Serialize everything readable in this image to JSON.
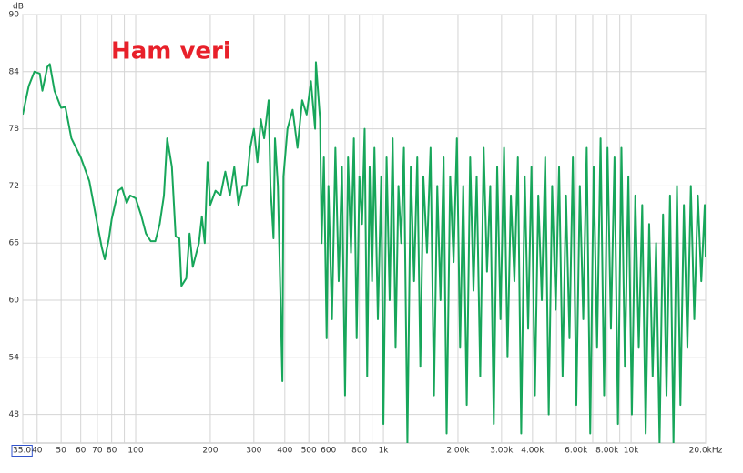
{
  "chart_data": {
    "type": "line",
    "title": "Ham veri",
    "y_label": "dB",
    "log_x": true,
    "grid": true,
    "xlim": [
      35,
      20000
    ],
    "ylim": [
      45,
      90
    ],
    "yticks": [
      48,
      54,
      60,
      66,
      72,
      78,
      84,
      90
    ],
    "xticks": [
      {
        "value": 35,
        "label": "35.0"
      },
      40,
      50,
      60,
      70,
      80,
      100,
      200,
      300,
      400,
      500,
      600,
      800,
      {
        "value": 1000,
        "label": "1k"
      },
      {
        "value": 2000,
        "label": "2.00k"
      },
      {
        "value": 3000,
        "label": "3.00k"
      },
      {
        "value": 4000,
        "label": "4.00k"
      },
      {
        "value": 6000,
        "label": "6.00k"
      },
      {
        "value": 8000,
        "label": "8.00k"
      },
      {
        "value": 10000,
        "label": "10k"
      },
      {
        "value": 20000,
        "label": "20.0kHz"
      }
    ],
    "x_minor_grid": [
      90,
      700,
      900,
      5000,
      7000,
      9000
    ],
    "x": [
      35,
      37,
      39,
      41,
      42,
      44,
      45,
      47,
      50,
      52,
      55,
      60,
      65,
      70,
      73,
      75,
      78,
      80,
      85,
      88,
      92,
      95,
      100,
      105,
      110,
      115,
      120,
      125,
      130,
      134,
      140,
      145,
      150,
      153,
      160,
      165,
      170,
      180,
      185,
      190,
      195,
      200,
      210,
      220,
      230,
      240,
      250,
      260,
      270,
      280,
      290,
      300,
      310,
      320,
      330,
      344,
      350,
      360,
      365,
      375,
      391,
      395,
      410,
      430,
      450,
      470,
      490,
      510,
      530,
      534,
      555,
      563,
      575,
      590,
      600,
      620,
      640,
      660,
      680,
      700,
      720,
      740,
      760,
      780,
      800,
      820,
      840,
      860,
      880,
      900,
      920,
      950,
      980,
      1000,
      1030,
      1060,
      1090,
      1120,
      1150,
      1180,
      1210,
      1250,
      1290,
      1330,
      1370,
      1410,
      1450,
      1500,
      1550,
      1600,
      1650,
      1700,
      1750,
      1800,
      1860,
      1920,
      1980,
      2040,
      2100,
      2170,
      2240,
      2310,
      2380,
      2460,
      2540,
      2620,
      2700,
      2790,
      2880,
      2970,
      3070,
      3170,
      3270,
      3380,
      3490,
      3600,
      3720,
      3840,
      3960,
      4090,
      4220,
      4360,
      4500,
      4650,
      4800,
      4960,
      5120,
      5290,
      5460,
      5640,
      5820,
      6010,
      6210,
      6410,
      6620,
      6840,
      7060,
      7290,
      7530,
      7780,
      8030,
      8290,
      8570,
      8850,
      9140,
      9440,
      9750,
      10070,
      10400,
      10740,
      11090,
      11450,
      11830,
      12220,
      12620,
      13030,
      13460,
      13900,
      14360,
      14830,
      15320,
      15820,
      16340,
      16880,
      17430,
      18000,
      18600,
      19210,
      19840,
      20000
    ],
    "series": [
      {
        "name": "Ham veri",
        "color": "#17a65a",
        "values": [
          79.5,
          82.5,
          84,
          83.8,
          82,
          84.5,
          84.8,
          82,
          80.2,
          80.3,
          77,
          75,
          72.5,
          68,
          65.5,
          64.3,
          66.5,
          68.5,
          71.5,
          71.8,
          70.2,
          71,
          70.7,
          69,
          67,
          66.2,
          66.2,
          68,
          71,
          77,
          74,
          66.7,
          66.5,
          61.5,
          62.3,
          67,
          63.5,
          66,
          68.8,
          66,
          74.5,
          70,
          71.5,
          71,
          73.5,
          71,
          74,
          70,
          72,
          72,
          76,
          78,
          74.5,
          79,
          77,
          81,
          72,
          66.5,
          77,
          72,
          51.5,
          73,
          78,
          80,
          76,
          81,
          79.5,
          83,
          78,
          85,
          79,
          66,
          75,
          56,
          72,
          58,
          76,
          62,
          74,
          50,
          75,
          65,
          77,
          56,
          73,
          68,
          78,
          52,
          74,
          62,
          76,
          58,
          73,
          47,
          75,
          60,
          77,
          55,
          72,
          66,
          76,
          45,
          74,
          62,
          75,
          53,
          73,
          65,
          76,
          50,
          72,
          60,
          75,
          46,
          73,
          64,
          77,
          55,
          72,
          49,
          75,
          61,
          73,
          52,
          76,
          63,
          72,
          47,
          74,
          58,
          76,
          54,
          71,
          62,
          75,
          46,
          73,
          57,
          74,
          50,
          71,
          60,
          75,
          48,
          72,
          59,
          74,
          52,
          71,
          56,
          75,
          49,
          72,
          58,
          76,
          46,
          74,
          55,
          77,
          50,
          76,
          57,
          75,
          47,
          76,
          53,
          73,
          48,
          71,
          55,
          70,
          46,
          68,
          52,
          66,
          45,
          69,
          50,
          71,
          45,
          72,
          49,
          70,
          55,
          72,
          58,
          71,
          62,
          70,
          64.5
        ]
      }
    ]
  }
}
